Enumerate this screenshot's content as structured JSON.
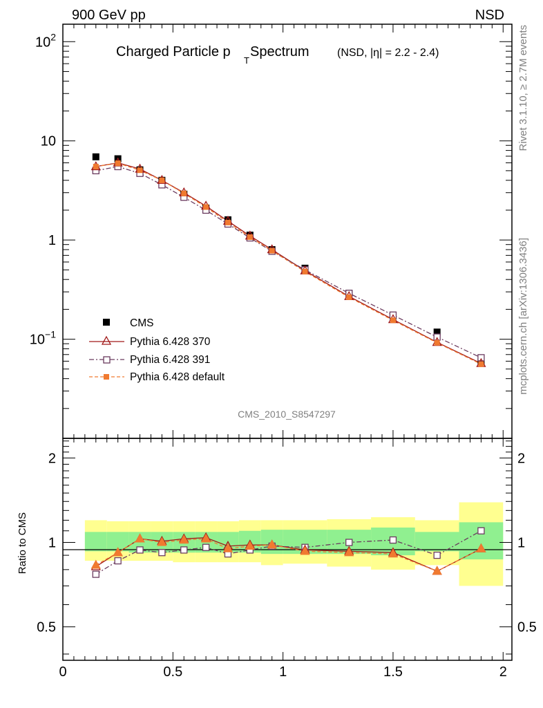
{
  "header": {
    "left": "900 GeV pp",
    "right": "NSD"
  },
  "side_labels": {
    "rivet": "Rivet 3.1.10, ≥ 2.7M events",
    "mcplots": "mcplots.cern.ch [arXiv:1306.3436]"
  },
  "colors": {
    "cms": "#000000",
    "p370": "#a01818",
    "p391": "#6a3a5e",
    "pdef": "#f07a30",
    "band_outer": "#ffff90",
    "band_inner": "#90f090"
  },
  "chart_data": [
    {
      "type": "line",
      "title_main": "Charged Particle p",
      "title_sub": "T",
      "title_tail": " Spectrum",
      "title_note": "(NSD, |η| = 2.2 - 2.4)",
      "analysis_label": "CMS_2010_S8547297",
      "xlim": [
        0,
        2.04
      ],
      "ylim": [
        0.01,
        150
      ],
      "log_y": true,
      "xticks": [],
      "yticks": [
        {
          "value": 0.1,
          "base": "10",
          "exp": "−1"
        },
        {
          "value": 1,
          "label": "1"
        },
        {
          "value": 10,
          "label": "10"
        },
        {
          "value": 100,
          "base": "10",
          "exp": "2"
        }
      ],
      "legend": [
        "CMS",
        "Pythia 6.428 370",
        "Pythia 6.428 391",
        "Pythia 6.428 default"
      ],
      "x": [
        0.15,
        0.25,
        0.35,
        0.45,
        0.55,
        0.65,
        0.75,
        0.85,
        0.95,
        1.1,
        1.3,
        1.5,
        1.7,
        1.9
      ],
      "series": [
        {
          "name": "CMS",
          "values": [
            6.9,
            6.6,
            5.1,
            4.0,
            2.9,
            2.1,
            1.6,
            1.12,
            0.8,
            0.52,
            0.29,
            0.172,
            0.118,
            0.059
          ]
        },
        {
          "name": "Pythia 6.428 370",
          "values": [
            5.5,
            6.0,
            5.2,
            4.0,
            3.0,
            2.2,
            1.55,
            1.1,
            0.8,
            0.49,
            0.27,
            0.158,
            0.093,
            0.057
          ]
        },
        {
          "name": "Pythia 6.428 391",
          "values": [
            5.0,
            5.5,
            4.7,
            3.6,
            2.7,
            2.0,
            1.45,
            1.05,
            0.77,
            0.5,
            0.29,
            0.175,
            0.105,
            0.065
          ]
        },
        {
          "name": "Pythia 6.428 default",
          "values": [
            5.5,
            5.95,
            5.05,
            4.0,
            2.95,
            2.15,
            1.5,
            1.07,
            0.78,
            0.48,
            0.265,
            0.155,
            0.092,
            0.056
          ]
        }
      ]
    },
    {
      "type": "line",
      "ylabel": "Ratio to CMS",
      "xlim": [
        0,
        2.04
      ],
      "ylim": [
        0.38,
        2.35
      ],
      "log_y": true,
      "xticks": [
        {
          "value": 0,
          "label": "0"
        },
        {
          "value": 0.5,
          "label": "0.5"
        },
        {
          "value": 1,
          "label": "1"
        },
        {
          "value": 1.5,
          "label": "1.5"
        },
        {
          "value": 2,
          "label": "2"
        }
      ],
      "yticks": [
        {
          "value": 0.5,
          "label": "0.5"
        },
        {
          "value": 1,
          "label": "1"
        },
        {
          "value": 2,
          "label": "2"
        }
      ],
      "bins": [
        [
          0.1,
          0.2
        ],
        [
          0.2,
          0.3
        ],
        [
          0.3,
          0.4
        ],
        [
          0.4,
          0.5
        ],
        [
          0.5,
          0.6
        ],
        [
          0.6,
          0.7
        ],
        [
          0.7,
          0.8
        ],
        [
          0.8,
          0.9
        ],
        [
          0.9,
          1.0
        ],
        [
          1.0,
          1.2
        ],
        [
          1.2,
          1.4
        ],
        [
          1.4,
          1.6
        ],
        [
          1.6,
          1.8
        ],
        [
          1.8,
          2.0
        ]
      ],
      "band_outer": [
        [
          0.86,
          1.2
        ],
        [
          0.86,
          1.19
        ],
        [
          0.86,
          1.19
        ],
        [
          0.86,
          1.19
        ],
        [
          0.85,
          1.19
        ],
        [
          0.85,
          1.19
        ],
        [
          0.85,
          1.19
        ],
        [
          0.85,
          1.2
        ],
        [
          0.83,
          1.2
        ],
        [
          0.84,
          1.2
        ],
        [
          0.82,
          1.21
        ],
        [
          0.8,
          1.23
        ],
        [
          0.83,
          1.2
        ],
        [
          0.7,
          1.39
        ]
      ],
      "band_inner": [
        [
          0.93,
          1.09
        ],
        [
          0.93,
          1.09
        ],
        [
          0.92,
          1.09
        ],
        [
          0.92,
          1.09
        ],
        [
          0.92,
          1.09
        ],
        [
          0.92,
          1.09
        ],
        [
          0.92,
          1.09
        ],
        [
          0.92,
          1.1
        ],
        [
          0.91,
          1.11
        ],
        [
          0.91,
          1.11
        ],
        [
          0.91,
          1.11
        ],
        [
          0.9,
          1.13
        ],
        [
          0.93,
          1.09
        ],
        [
          0.87,
          1.18
        ]
      ],
      "x": [
        0.15,
        0.25,
        0.35,
        0.45,
        0.55,
        0.65,
        0.75,
        0.85,
        0.95,
        1.1,
        1.3,
        1.5,
        1.7,
        1.9
      ],
      "series": [
        {
          "name": "Pythia 6.428 370",
          "values": [
            0.82,
            0.92,
            1.03,
            1.01,
            1.03,
            1.04,
            0.97,
            0.98,
            0.98,
            0.94,
            0.93,
            0.92,
            0.79,
            0.95
          ]
        },
        {
          "name": "Pythia 6.428 391",
          "values": [
            0.77,
            0.86,
            0.94,
            0.92,
            0.94,
            0.96,
            0.91,
            0.94,
            0.97,
            0.96,
            1.0,
            1.02,
            0.9,
            1.1
          ]
        },
        {
          "name": "Pythia 6.428 default",
          "values": [
            0.83,
            0.92,
            1.03,
            1.0,
            1.02,
            1.03,
            0.95,
            0.97,
            0.98,
            0.93,
            0.92,
            0.91,
            0.79,
            0.95
          ]
        }
      ]
    }
  ]
}
